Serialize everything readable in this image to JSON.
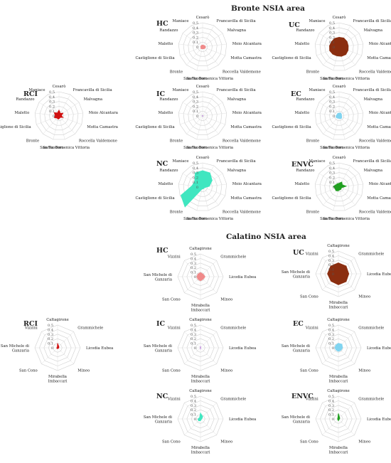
{
  "sections": [
    {
      "title": "Bronte NSIA area"
    },
    {
      "title": "Calatino NSIA area"
    }
  ],
  "chart_data": [
    {
      "type": "radar",
      "section": 0,
      "title": "HC",
      "color": "#f08a8a",
      "axes": [
        "Cesarò",
        "Francavilla di Sicilia",
        "Malvagna",
        "Moio Alcantara",
        "Motta Camastra",
        "Roccella Valdemone",
        "Santa Domenica Vittoria",
        "San Teodoro",
        "Bronte",
        "Castiglione di Sicilia",
        "Maletto",
        "Randazzo",
        "Maniace"
      ],
      "ticks": [
        "0.5",
        "0.4",
        "0.3",
        "0.2",
        "0.1",
        "0"
      ],
      "rmax": 0.5,
      "values": [
        0.04,
        0.04,
        0.05,
        0.06,
        0.06,
        0.05,
        0.04,
        0.04,
        0.05,
        0.04,
        0.04,
        0.04,
        0.04
      ]
    },
    {
      "type": "radar",
      "section": 0,
      "title": "UC",
      "color": "#8b2e10",
      "axes": [
        "Cesarò",
        "Francavilla di Sicilia",
        "Malvagna",
        "Moio Alcantara",
        "Motta Camastra",
        "Roccella Valdemone",
        "Santa Domenica Vittoria",
        "San Teodoro",
        "Bronte",
        "Castiglione di Sicilia",
        "Maletto",
        "Randazzo",
        "Maniace"
      ],
      "ticks": [
        "0.5",
        "0.4",
        "0.3",
        "0.2",
        "0.1",
        "0"
      ],
      "rmax": 0.5,
      "values": [
        0.2,
        0.21,
        0.2,
        0.19,
        0.2,
        0.21,
        0.2,
        0.19,
        0.2,
        0.21,
        0.2,
        0.19,
        0.2
      ]
    },
    {
      "type": "radar",
      "section": 0,
      "title": "RCI",
      "color": "#d01010",
      "axes": [
        "Cesarò",
        "Francavilla di Sicilia",
        "Malvagna",
        "Moio Alcantara",
        "Motta Camastra",
        "Roccella Valdemone",
        "Santa Domenica Vittoria",
        "San Teodoro",
        "Bronte",
        "Castiglione di Sicilia",
        "Maletto",
        "Randazzo",
        "Maniace"
      ],
      "ticks": [
        "0.5",
        "0.4",
        "0.3",
        "0.2",
        "0.1",
        "0"
      ],
      "rmax": 0.5,
      "values": [
        0.12,
        0.06,
        0.1,
        0.05,
        0.09,
        0.04,
        0.05,
        0.07,
        0.06,
        0.1,
        0.08,
        0.12,
        0.07
      ]
    },
    {
      "type": "radar",
      "section": 0,
      "title": "IC",
      "color": "#c9a0e0",
      "axes": [
        "Cesarò",
        "Francavilla di Sicilia",
        "Malvagna",
        "Moio Alcantara",
        "Motta Camastra",
        "Roccella Valdemone",
        "Santa Domenica Vittoria",
        "San Teodoro",
        "Bronte",
        "Castiglione di Sicilia",
        "Maletto",
        "Randazzo",
        "Maniace"
      ],
      "ticks": [
        "0.5",
        "0.4",
        "0.3",
        "0.2",
        "0.1",
        "0"
      ],
      "rmax": 0.5,
      "values": [
        0.01,
        0.01,
        0.01,
        0.01,
        0.01,
        0.01,
        0.01,
        0.01,
        0.01,
        0.01,
        0.01,
        0.01,
        0.01
      ]
    },
    {
      "type": "radar",
      "section": 0,
      "title": "EC",
      "color": "#80d4f0",
      "axes": [
        "Cesarò",
        "Francavilla di Sicilia",
        "Malvagna",
        "Moio Alcantara",
        "Motta Camastra",
        "Roccella Valdemone",
        "Santa Domenica Vittoria",
        "San Teodoro",
        "Bronte",
        "Castiglione di Sicilia",
        "Maletto",
        "Randazzo",
        "Maniace"
      ],
      "ticks": [
        "0.5",
        "0.4",
        "0.3",
        "0.2",
        "0.1",
        "0"
      ],
      "rmax": 0.5,
      "values": [
        0.06,
        0.07,
        0.06,
        0.05,
        0.06,
        0.07,
        0.06,
        0.05,
        0.06,
        0.07,
        0.06,
        0.05,
        0.06
      ]
    },
    {
      "type": "radar",
      "section": 0,
      "title": "NC",
      "color": "#40e6c0",
      "axes": [
        "Cesarò",
        "Francavilla di Sicilia",
        "Malvagna",
        "Moio Alcantara",
        "Motta Camastra",
        "Roccella Valdemone",
        "Santa Domenica Vittoria",
        "San Teodoro",
        "Bronte",
        "Castiglione di Sicilia",
        "Maletto",
        "Randazzo",
        "Maniace"
      ],
      "ticks": [
        "0.5",
        "0.4",
        "0.3",
        "0.2",
        "0.1",
        "0"
      ],
      "rmax": 0.5,
      "values": [
        0.34,
        0.33,
        0.24,
        0.14,
        0.04,
        0.04,
        0.04,
        0.04,
        0.55,
        0.48,
        0.22,
        0.2,
        0.33
      ]
    },
    {
      "type": "radar",
      "section": 0,
      "title": "ENVC",
      "color": "#20a020",
      "axes": [
        "Cesarò",
        "Francavilla di Sicilia",
        "Malvagna",
        "Moio Alcantara",
        "Motta Camastra",
        "Roccella Valdemone",
        "Santa Domenica Vittoria",
        "San Teodoro",
        "Bronte",
        "Castiglione di Sicilia",
        "Maletto",
        "Randazzo",
        "Maniace"
      ],
      "ticks": [
        "0.5",
        "0.4",
        "0.3",
        "0.2",
        "0.1",
        "0"
      ],
      "rmax": 0.5,
      "values": [
        0.08,
        0.12,
        0.08,
        0.15,
        0.05,
        0.06,
        0.06,
        0.08,
        0.1,
        0.09,
        0.12,
        0.08,
        0.08
      ]
    },
    {
      "type": "radar",
      "section": 1,
      "title": "HC",
      "color": "#f08a8a",
      "axes": [
        "Caltagirone",
        "Grammichele",
        "Licodia Eubea",
        "Mineo",
        "Mirabella Imbaccari",
        "San Cono",
        "San Michele di Ganzaria",
        "Vizzini"
      ],
      "ticks": [
        "0.5",
        "0.4",
        "0.3",
        "0.2",
        "0.1",
        "0"
      ],
      "rmax": 0.5,
      "values": [
        0.09,
        0.08,
        0.1,
        0.08,
        0.09,
        0.08,
        0.08,
        0.08
      ]
    },
    {
      "type": "radar",
      "section": 1,
      "title": "UC",
      "color": "#8b2e10",
      "axes": [
        "Caltagirone",
        "Grammichele",
        "Licodia Eubea",
        "Mineo",
        "Mirabella Imbaccari",
        "San Cono",
        "San Michele di Ganzaria",
        "Vizzini"
      ],
      "ticks": [
        "0.5",
        "0.4",
        "0.3",
        "0.2",
        "0.1",
        "0"
      ],
      "rmax": 0.5,
      "values": [
        0.24,
        0.24,
        0.23,
        0.24,
        0.24,
        0.23,
        0.24,
        0.24
      ]
    },
    {
      "type": "radar",
      "section": 1,
      "title": "RCI",
      "color": "#d01010",
      "axes": [
        "Caltagirone",
        "Grammichele",
        "Licodia Eubea",
        "Mineo",
        "Mirabella Imbaccari",
        "San Cono",
        "San Michele di Ganzaria",
        "Vizzini"
      ],
      "ticks": [
        "0.5",
        "0.4",
        "0.3",
        "0.2",
        "0.1",
        "0"
      ],
      "rmax": 0.5,
      "values": [
        0.1,
        0.04,
        0.03,
        0.02,
        0.02,
        0.02,
        0.02,
        0.01
      ]
    },
    {
      "type": "radar",
      "section": 1,
      "title": "IC",
      "color": "#c9a0e0",
      "axes": [
        "Caltagirone",
        "Grammichele",
        "Licodia Eubea",
        "Mineo",
        "Mirabella Imbaccari",
        "San Cono",
        "San Michele di Ganzaria",
        "Vizzini"
      ],
      "ticks": [
        "0.5",
        "0.4",
        "0.3",
        "0.2",
        "0.1",
        "0"
      ],
      "rmax": 0.5,
      "values": [
        0.04,
        0.01,
        0.01,
        0.01,
        0.03,
        0.01,
        0.01,
        0.01
      ]
    },
    {
      "type": "radar",
      "section": 1,
      "title": "EC",
      "color": "#80d4f0",
      "axes": [
        "Caltagirone",
        "Grammichele",
        "Licodia Eubea",
        "Mineo",
        "Mirabella Imbaccari",
        "San Cono",
        "San Michele di Ganzaria",
        "Vizzini"
      ],
      "ticks": [
        "0.5",
        "0.4",
        "0.3",
        "0.2",
        "0.1",
        "0"
      ],
      "rmax": 0.5,
      "values": [
        0.1,
        0.11,
        0.09,
        0.08,
        0.08,
        0.07,
        0.08,
        0.08
      ]
    },
    {
      "type": "radar",
      "section": 1,
      "title": "NC",
      "color": "#40e6c0",
      "axes": [
        "Caltagirone",
        "Grammichele",
        "Licodia Eubea",
        "Mineo",
        "Mirabella Imbaccari",
        "San Cono",
        "San Michele di Ganzaria",
        "Vizzini"
      ],
      "ticks": [
        "0.5",
        "0.4",
        "0.3",
        "0.2",
        "0.1",
        "0"
      ],
      "rmax": 0.5,
      "values": [
        0.13,
        0.07,
        0.03,
        0.02,
        0.04,
        0.06,
        0.06,
        0.03
      ]
    },
    {
      "type": "radar",
      "section": 1,
      "title": "ENVC",
      "color": "#20a020",
      "axes": [
        "Caltagirone",
        "Grammichele",
        "Licodia Eubea",
        "Mineo",
        "Mirabella Imbaccari",
        "San Cono",
        "San Michele di Ganzaria",
        "Vizzini"
      ],
      "ticks": [
        "0.5",
        "0.4",
        "0.3",
        "0.2",
        "0.1",
        "0"
      ],
      "rmax": 0.5,
      "values": [
        0.12,
        0.04,
        0.03,
        0.02,
        0.04,
        0.02,
        0.02,
        0.02
      ]
    }
  ]
}
